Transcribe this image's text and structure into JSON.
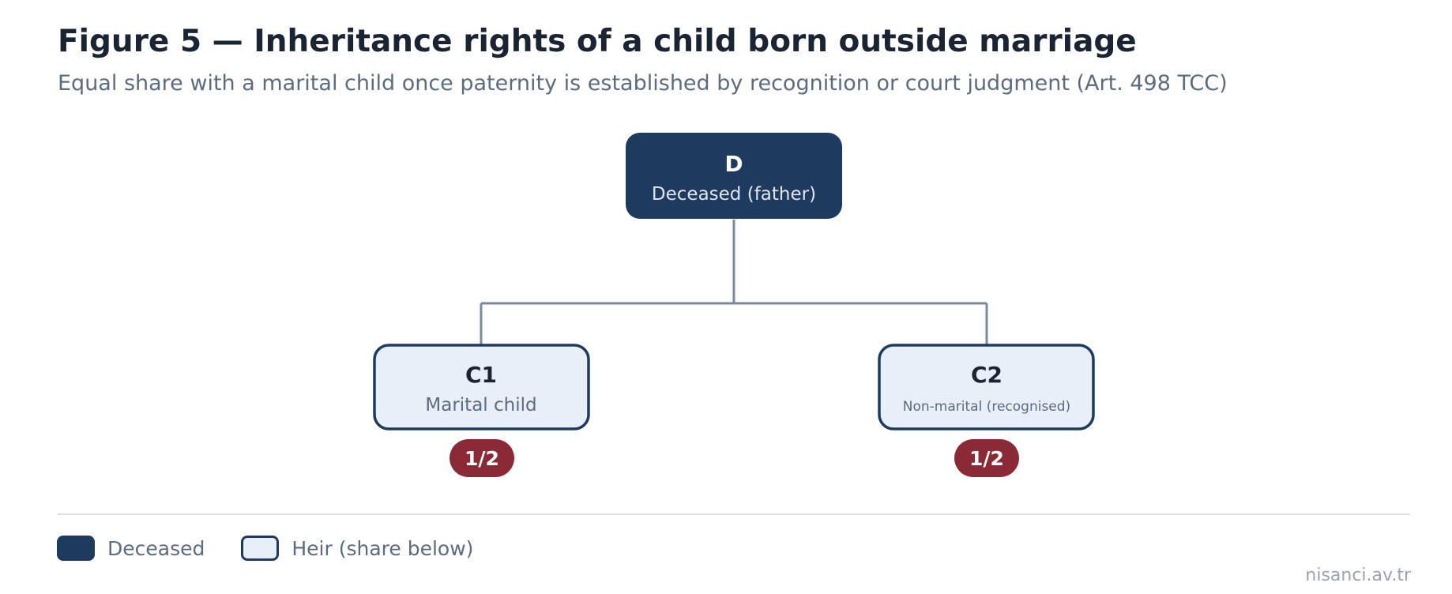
{
  "figure": {
    "title": "Figure 5 — Inheritance rights of a child born outside marriage",
    "subtitle": "Equal share with a marital child once paternity is established by recognition or court judgment (Art. 498 TCC)"
  },
  "nodes": {
    "deceased": {
      "code": "D",
      "label": "Deceased (father)"
    },
    "c1": {
      "code": "C1",
      "label": "Marital child",
      "share": "1/2"
    },
    "c2": {
      "code": "C2",
      "label": "Non-marital (recognised)",
      "share": "1/2"
    }
  },
  "legend": {
    "deceased": "Deceased",
    "heir": "Heir (share below)"
  },
  "watermark": "nisanci.av.tr",
  "colors": {
    "deceased_fill": "#1f3a5f",
    "heir_fill": "#e8eff8",
    "heir_border": "#1f3a5f",
    "share_badge": "#8b2a37",
    "connector": "#7d8898"
  }
}
